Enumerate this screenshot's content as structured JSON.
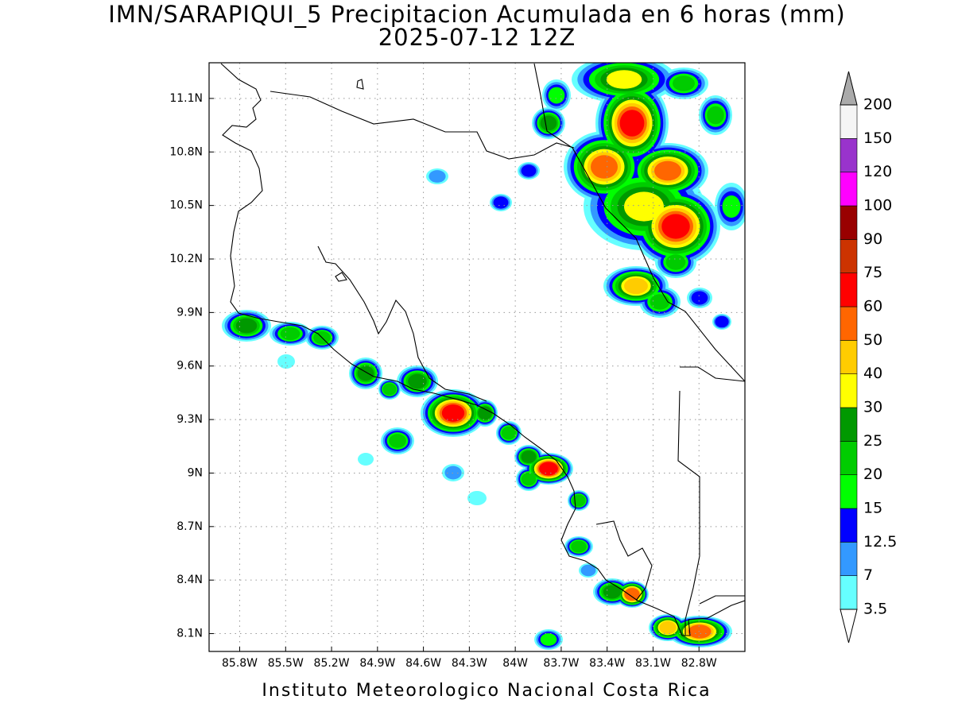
{
  "title": "IMN/SARAPIQUI_5 Precipitacion Acumulada en 6 horas (mm)",
  "subtitle": "2025-07-12 12Z",
  "footer": "Instituto Meteorologico Nacional Costa Rica",
  "map": {
    "xlim": [
      -86.0,
      -82.5
    ],
    "ylim": [
      8.0,
      11.3
    ],
    "grid": true,
    "xticks": [
      {
        "value": -85.8,
        "label": "85.8W"
      },
      {
        "value": -85.5,
        "label": "85.5W"
      },
      {
        "value": -85.2,
        "label": "85.2W"
      },
      {
        "value": -84.9,
        "label": "84.9W"
      },
      {
        "value": -84.6,
        "label": "84.6W"
      },
      {
        "value": -84.3,
        "label": "84.3W"
      },
      {
        "value": -84.0,
        "label": "84W"
      },
      {
        "value": -83.7,
        "label": "83.7W"
      },
      {
        "value": -83.4,
        "label": "83.4W"
      },
      {
        "value": -83.1,
        "label": "83.1W"
      },
      {
        "value": -82.8,
        "label": "82.8W"
      }
    ],
    "yticks": [
      {
        "value": 8.1,
        "label": "8.1N"
      },
      {
        "value": 8.4,
        "label": "8.4N"
      },
      {
        "value": 8.7,
        "label": "8.7N"
      },
      {
        "value": 9.0,
        "label": "9N"
      },
      {
        "value": 9.3,
        "label": "9.3N"
      },
      {
        "value": 9.6,
        "label": "9.6N"
      },
      {
        "value": 9.9,
        "label": "9.9N"
      },
      {
        "value": 10.2,
        "label": "10.2N"
      },
      {
        "value": 10.5,
        "label": "10.5N"
      },
      {
        "value": 10.8,
        "label": "10.8N"
      },
      {
        "value": 11.1,
        "label": "11.1N"
      }
    ]
  },
  "colorbar": {
    "levels": [
      3.5,
      7,
      12.5,
      15,
      20,
      25,
      30,
      40,
      50,
      60,
      75,
      90,
      100,
      120,
      150,
      200
    ],
    "colors": [
      "#66ffff",
      "#3399ff",
      "#0000ff",
      "#00ff00",
      "#00cc00",
      "#009900",
      "#ffff00",
      "#ffcc00",
      "#ff6600",
      "#ff0000",
      "#cc3300",
      "#990000",
      "#ff00ff",
      "#9933cc",
      "#f5f5f5"
    ],
    "under_color": "#ffffff",
    "over_color": "#aaaaaa"
  }
}
